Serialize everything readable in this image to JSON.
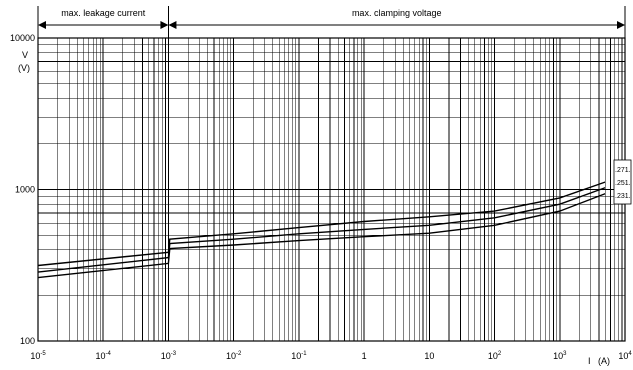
{
  "chart_data": {
    "type": "line",
    "title": "",
    "xscale": "log",
    "yscale": "log",
    "xlim": [
      1e-05,
      10000
    ],
    "ylim": [
      100,
      10000
    ],
    "ylabel": "V",
    "ylabel_unit": "(V)",
    "xlabel": "I",
    "xlabel_unit": "(A)",
    "grid": true,
    "x_ticks": [
      {
        "base": "10",
        "exp": "-5",
        "value": 1e-05
      },
      {
        "base": "10",
        "exp": "-4",
        "value": 0.0001
      },
      {
        "base": "10",
        "exp": "-3",
        "value": 0.001
      },
      {
        "base": "10",
        "exp": "-2",
        "value": 0.01
      },
      {
        "base": "10",
        "exp": "-1",
        "value": 0.1
      },
      {
        "base": "1",
        "exp": "",
        "value": 1
      },
      {
        "base": "10",
        "exp": "",
        "value": 10
      },
      {
        "base": "10",
        "exp": "2",
        "value": 100
      },
      {
        "base": "10",
        "exp": "3",
        "value": 1000
      },
      {
        "base": "10",
        "exp": "4",
        "value": 10000
      }
    ],
    "y_ticks": [
      {
        "label": "10000",
        "value": 10000
      },
      {
        "label": "1000",
        "value": 1000
      },
      {
        "label": "100",
        "value": 100
      }
    ],
    "regions": [
      {
        "label": "max. leakage current",
        "x_from": 1e-05,
        "x_to": 0.001
      },
      {
        "label": "max. clamping voltage",
        "x_from": 0.001,
        "x_to": 10000
      }
    ],
    "series": [
      {
        "name": ".271.",
        "x": [
          1e-05,
          0.001,
          0.00105,
          0.01,
          0.1,
          1,
          10,
          100,
          1000,
          5000
        ],
        "values": [
          315,
          385,
          470,
          510,
          560,
          615,
          660,
          720,
          880,
          1120
        ]
      },
      {
        "name": ".251.",
        "x": [
          1e-05,
          0.001,
          0.00105,
          0.01,
          0.1,
          1,
          10,
          100,
          1000,
          5000
        ],
        "values": [
          285,
          355,
          440,
          470,
          510,
          545,
          580,
          650,
          800,
          1030
        ]
      },
      {
        "name": ".231.",
        "x": [
          1e-05,
          0.001,
          0.00105,
          0.01,
          0.1,
          1,
          10,
          100,
          1000,
          5000
        ],
        "values": [
          262,
          325,
          408,
          430,
          460,
          488,
          515,
          580,
          720,
          940
        ]
      }
    ]
  }
}
